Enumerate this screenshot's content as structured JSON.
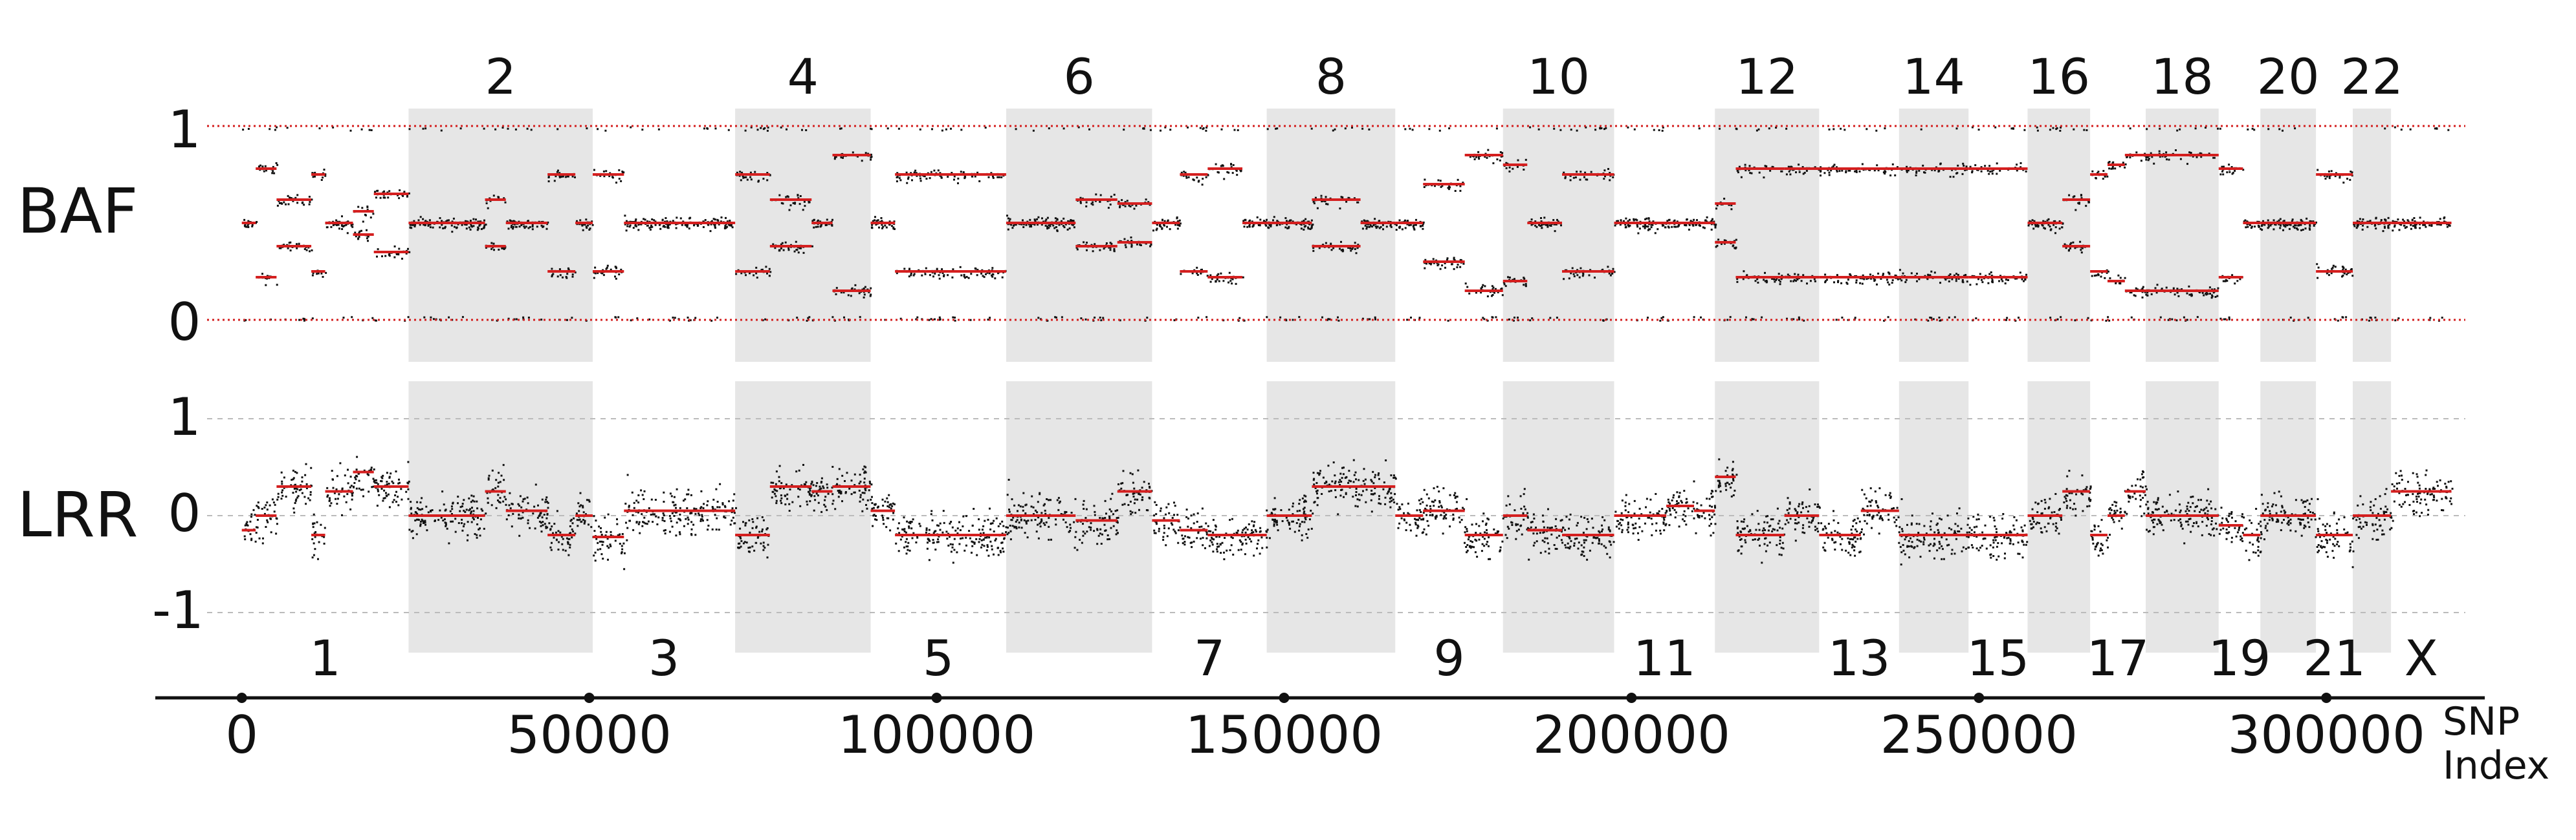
{
  "chart_data": [
    {
      "type": "scatter",
      "panel": "BAF",
      "ylabel": "BAF",
      "ylim": [
        0,
        1
      ],
      "yticks": [
        "0",
        "1"
      ],
      "point_color": "#111111",
      "segment_color": "#d41f1f",
      "band_color": "#e6e6e6",
      "upper_chromosome_labels": [
        "2",
        "4",
        "6",
        "8",
        "10",
        "12",
        "14",
        "16",
        "18",
        "20",
        "22"
      ],
      "note": "dense SNP B-allele frequency points; red lines mark segment mean levels"
    },
    {
      "type": "scatter",
      "panel": "LRR",
      "ylabel": "LRR",
      "ylim": [
        -1.3,
        1.3
      ],
      "yticks": [
        "-1",
        "0",
        "1"
      ],
      "point_color": "#111111",
      "segment_color": "#d41f1f",
      "lower_chromosome_labels": [
        "1",
        "3",
        "5",
        "7",
        "9",
        "11",
        "13",
        "15",
        "17",
        "19",
        "21",
        "X"
      ]
    }
  ],
  "x_axis": {
    "label": "SNP\nIndex",
    "xlim": [
      -5000,
      320000
    ],
    "ticks": [
      0,
      50000,
      100000,
      150000,
      200000,
      250000,
      300000
    ],
    "tick_labels": [
      "0",
      "50000",
      "100000",
      "150000",
      "200000",
      "250000",
      "300000"
    ]
  },
  "chromosomes": [
    {
      "name": "1",
      "start": 0,
      "end": 24000
    },
    {
      "name": "2",
      "start": 24000,
      "end": 50500
    },
    {
      "name": "3",
      "start": 50500,
      "end": 71000
    },
    {
      "name": "4",
      "start": 71000,
      "end": 90500
    },
    {
      "name": "5",
      "start": 90500,
      "end": 110000
    },
    {
      "name": "6",
      "start": 110000,
      "end": 131000
    },
    {
      "name": "7",
      "start": 131000,
      "end": 147500
    },
    {
      "name": "8",
      "start": 147500,
      "end": 166000
    },
    {
      "name": "9",
      "start": 166000,
      "end": 181500
    },
    {
      "name": "10",
      "start": 181500,
      "end": 197500
    },
    {
      "name": "11",
      "start": 197500,
      "end": 212000
    },
    {
      "name": "12",
      "start": 212000,
      "end": 227000
    },
    {
      "name": "13",
      "start": 227000,
      "end": 238500
    },
    {
      "name": "14",
      "start": 238500,
      "end": 248500
    },
    {
      "name": "15",
      "start": 248500,
      "end": 257000
    },
    {
      "name": "16",
      "start": 257000,
      "end": 266000
    },
    {
      "name": "17",
      "start": 266000,
      "end": 274000
    },
    {
      "name": "18",
      "start": 274000,
      "end": 284500
    },
    {
      "name": "19",
      "start": 284500,
      "end": 290500
    },
    {
      "name": "20",
      "start": 290500,
      "end": 298500
    },
    {
      "name": "21",
      "start": 298500,
      "end": 303800
    },
    {
      "name": "22",
      "start": 303800,
      "end": 309300
    },
    {
      "name": "X",
      "start": 309300,
      "end": 318000
    }
  ],
  "segments": [
    {
      "start": 0,
      "end": 2000,
      "baf": 0.5,
      "lrr": -0.15
    },
    {
      "start": 2000,
      "end": 5000,
      "baf": 0.22,
      "lrr": 0.0
    },
    {
      "start": 5000,
      "end": 10000,
      "baf": 0.38,
      "lrr": 0.3
    },
    {
      "start": 10000,
      "end": 12000,
      "baf": 0.25,
      "lrr": -0.2
    },
    {
      "start": 12000,
      "end": 16000,
      "baf": 0.5,
      "lrr": 0.25
    },
    {
      "start": 16000,
      "end": 19000,
      "baf": 0.44,
      "lrr": 0.45
    },
    {
      "start": 19000,
      "end": 24000,
      "baf": 0.35,
      "lrr": 0.3
    },
    {
      "start": 24000,
      "end": 35000,
      "baf": 0.5,
      "lrr": 0.0
    },
    {
      "start": 35000,
      "end": 38000,
      "baf": 0.38,
      "lrr": 0.25
    },
    {
      "start": 38000,
      "end": 44000,
      "baf": 0.5,
      "lrr": 0.05
    },
    {
      "start": 44000,
      "end": 48000,
      "baf": 0.25,
      "lrr": -0.2
    },
    {
      "start": 48000,
      "end": 50500,
      "baf": 0.5,
      "lrr": 0.0
    },
    {
      "start": 50500,
      "end": 55000,
      "baf": 0.25,
      "lrr": -0.22
    },
    {
      "start": 55000,
      "end": 71000,
      "baf": 0.5,
      "lrr": 0.05
    },
    {
      "start": 71000,
      "end": 76000,
      "baf": 0.25,
      "lrr": -0.2
    },
    {
      "start": 76000,
      "end": 82000,
      "baf": 0.38,
      "lrr": 0.3
    },
    {
      "start": 82000,
      "end": 85000,
      "baf": 0.5,
      "lrr": 0.25
    },
    {
      "start": 85000,
      "end": 90500,
      "baf": 0.15,
      "lrr": 0.3
    },
    {
      "start": 90500,
      "end": 94000,
      "baf": 0.5,
      "lrr": 0.05
    },
    {
      "start": 94000,
      "end": 110000,
      "baf": 0.25,
      "lrr": -0.2
    },
    {
      "start": 110000,
      "end": 120000,
      "baf": 0.5,
      "lrr": 0.0
    },
    {
      "start": 120000,
      "end": 126000,
      "baf": 0.38,
      "lrr": -0.05
    },
    {
      "start": 126000,
      "end": 131000,
      "baf": 0.4,
      "lrr": 0.25
    },
    {
      "start": 131000,
      "end": 135000,
      "baf": 0.5,
      "lrr": -0.05
    },
    {
      "start": 135000,
      "end": 139000,
      "baf": 0.25,
      "lrr": -0.15
    },
    {
      "start": 139000,
      "end": 144000,
      "baf": 0.22,
      "lrr": -0.2
    },
    {
      "start": 144000,
      "end": 147500,
      "baf": 0.5,
      "lrr": -0.2
    },
    {
      "start": 147500,
      "end": 154000,
      "baf": 0.5,
      "lrr": 0.0
    },
    {
      "start": 154000,
      "end": 161000,
      "baf": 0.38,
      "lrr": 0.3
    },
    {
      "start": 161000,
      "end": 166000,
      "baf": 0.5,
      "lrr": 0.3
    },
    {
      "start": 166000,
      "end": 170000,
      "baf": 0.5,
      "lrr": 0.0
    },
    {
      "start": 170000,
      "end": 176000,
      "baf": 0.3,
      "lrr": 0.05
    },
    {
      "start": 176000,
      "end": 181500,
      "baf": 0.15,
      "lrr": -0.2
    },
    {
      "start": 181500,
      "end": 185000,
      "baf": 0.2,
      "lrr": 0.0
    },
    {
      "start": 185000,
      "end": 190000,
      "baf": 0.5,
      "lrr": -0.15
    },
    {
      "start": 190000,
      "end": 197500,
      "baf": 0.25,
      "lrr": -0.2
    },
    {
      "start": 197500,
      "end": 205000,
      "baf": 0.5,
      "lrr": 0.0
    },
    {
      "start": 205000,
      "end": 209000,
      "baf": 0.5,
      "lrr": 0.1
    },
    {
      "start": 209000,
      "end": 212000,
      "baf": 0.5,
      "lrr": 0.05
    },
    {
      "start": 212000,
      "end": 215000,
      "baf": 0.4,
      "lrr": 0.4
    },
    {
      "start": 215000,
      "end": 222000,
      "baf": 0.22,
      "lrr": -0.2
    },
    {
      "start": 222000,
      "end": 227000,
      "baf": 0.22,
      "lrr": 0.0
    },
    {
      "start": 227000,
      "end": 233000,
      "baf": 0.22,
      "lrr": -0.2
    },
    {
      "start": 233000,
      "end": 238500,
      "baf": 0.22,
      "lrr": 0.05
    },
    {
      "start": 238500,
      "end": 248500,
      "baf": 0.22,
      "lrr": -0.2
    },
    {
      "start": 248500,
      "end": 257000,
      "baf": 0.22,
      "lrr": -0.2
    },
    {
      "start": 257000,
      "end": 262000,
      "baf": 0.5,
      "lrr": 0.0
    },
    {
      "start": 262000,
      "end": 266000,
      "baf": 0.38,
      "lrr": 0.25
    },
    {
      "start": 266000,
      "end": 268500,
      "baf": 0.25,
      "lrr": -0.2
    },
    {
      "start": 268500,
      "end": 271000,
      "baf": 0.2,
      "lrr": 0.0
    },
    {
      "start": 271000,
      "end": 274000,
      "baf": 0.15,
      "lrr": 0.25
    },
    {
      "start": 274000,
      "end": 284500,
      "baf": 0.15,
      "lrr": 0.0
    },
    {
      "start": 284500,
      "end": 288000,
      "baf": 0.22,
      "lrr": -0.1
    },
    {
      "start": 288000,
      "end": 290500,
      "baf": 0.5,
      "lrr": -0.2
    },
    {
      "start": 290500,
      "end": 298500,
      "baf": 0.5,
      "lrr": 0.0
    },
    {
      "start": 298500,
      "end": 303800,
      "baf": 0.25,
      "lrr": -0.2
    },
    {
      "start": 303800,
      "end": 309300,
      "baf": 0.5,
      "lrr": 0.0
    },
    {
      "start": 309300,
      "end": 318000,
      "baf": 0.5,
      "lrr": 0.25
    }
  ]
}
